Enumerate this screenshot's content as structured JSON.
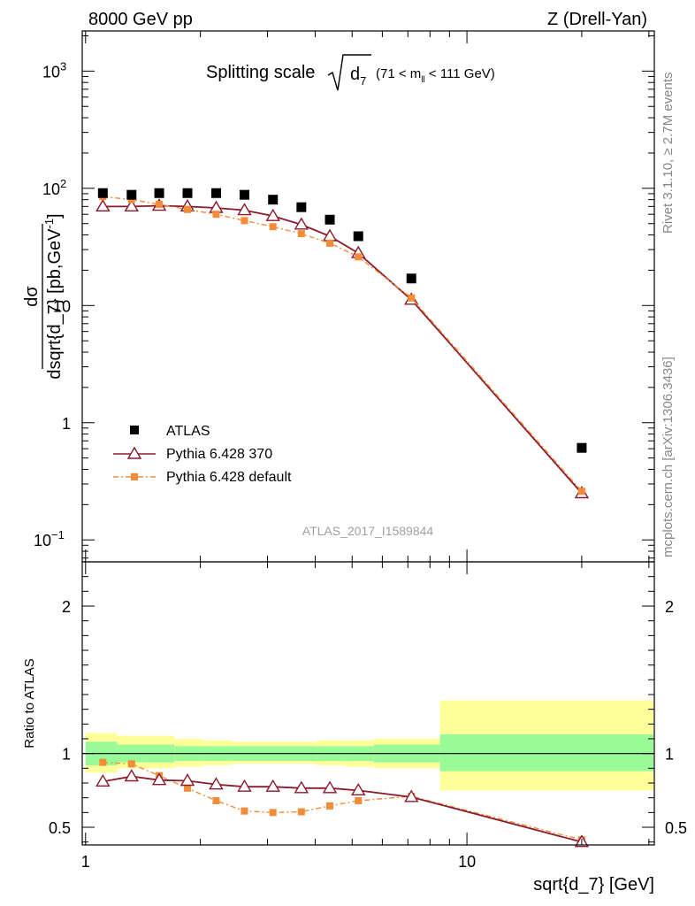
{
  "header": {
    "left": "8000 GeV pp",
    "right": "Z (Drell-Yan)"
  },
  "side_labels": {
    "rivet": "Rivet 3.1.10, ≥ 2.7M events",
    "mcplots": "mcplots.cern.ch [arXiv:1306.3436]"
  },
  "colors": {
    "atlas": "#000000",
    "pythia370": "#8b1a2b",
    "pythia_default": "#f28c38",
    "band_inner": "#98fb98",
    "band_outer": "#ffff99"
  },
  "chart_data": [
    {
      "type": "line",
      "panel": "main",
      "title_prefix": "Splitting scale",
      "title_symbol": "d",
      "title_symbol_sub": "7",
      "title_suffix_a": "(71 < m",
      "title_suffix_sub": "ll",
      "title_suffix_b": " < 111 GeV)",
      "ylabel": "dσ/dsqrt{d_7} [pb,GeV⁻¹]",
      "ylabel_num": "dσ",
      "ylabel_den": "dsqrt{d_7} [pb,GeV",
      "ylabel_den_sup": "-1",
      "ylabel_den_end": "]",
      "xscale": "log",
      "yscale": "log",
      "xlim": [
        0.98,
        31
      ],
      "ylim": [
        0.065,
        2200
      ],
      "y_tick_labels": [
        {
          "value": 1000,
          "base": "10",
          "exp": "3"
        },
        {
          "value": 100,
          "base": "10",
          "exp": "2"
        },
        {
          "value": 10,
          "base": "10",
          "exp": ""
        },
        {
          "value": 1,
          "base": "1",
          "exp": ""
        },
        {
          "value": 0.1,
          "base": "10",
          "exp": "−1"
        }
      ],
      "watermark": "ATLAS_2017_I1589844",
      "legend_position": "bottom-left",
      "series": [
        {
          "name": "ATLAS",
          "style": "square",
          "x": [
            1.11,
            1.32,
            1.56,
            1.85,
            2.2,
            2.61,
            3.1,
            3.68,
            4.37,
            5.19,
            7.15,
            20.0
          ],
          "y": [
            91,
            88,
            91,
            91,
            91,
            88,
            80,
            69,
            54,
            39,
            17,
            0.61
          ]
        },
        {
          "name": "Pythia 6.428 370",
          "style": "triangle-line",
          "x": [
            1.11,
            1.32,
            1.56,
            1.85,
            2.2,
            2.61,
            3.1,
            3.68,
            4.37,
            5.19,
            7.15,
            20.0
          ],
          "y": [
            70,
            70,
            71,
            70,
            68,
            65,
            58,
            49,
            39,
            28,
            11.2,
            0.25
          ]
        },
        {
          "name": "Pythia 6.428 default",
          "style": "dashdot-square",
          "x": [
            1.11,
            1.32,
            1.56,
            1.85,
            2.2,
            2.61,
            3.1,
            3.68,
            4.37,
            5.19,
            7.15,
            20.0
          ],
          "y": [
            85,
            80,
            73,
            66,
            60,
            53,
            47,
            41,
            34,
            26,
            11.6,
            0.26
          ]
        }
      ]
    },
    {
      "type": "line",
      "panel": "ratio",
      "ylabel": "Ratio to ATLAS",
      "xlabel": "sqrt{d_7} [GeV]",
      "xscale": "log",
      "xlim": [
        0.98,
        31
      ],
      "ylim": [
        0.38,
        2.3
      ],
      "y_tick_labels": [
        {
          "value": 2,
          "label": "2"
        },
        {
          "value": 1,
          "label": "1"
        },
        {
          "value": 0.5,
          "label": "0.5"
        }
      ],
      "x_tick_labels": [
        {
          "value": 1,
          "label": "1"
        },
        {
          "value": 10,
          "label": "10"
        }
      ],
      "bands": {
        "edges": [
          1.0,
          1.21,
          1.44,
          1.71,
          2.03,
          2.41,
          2.86,
          3.4,
          4.04,
          4.8,
          5.7,
          8.5,
          31.0
        ],
        "inner_lo": [
          0.92,
          0.94,
          0.94,
          0.95,
          0.95,
          0.95,
          0.95,
          0.95,
          0.95,
          0.95,
          0.94,
          0.88
        ],
        "inner_hi": [
          1.08,
          1.06,
          1.06,
          1.05,
          1.05,
          1.05,
          1.05,
          1.05,
          1.05,
          1.05,
          1.06,
          1.13
        ],
        "outer_lo": [
          0.87,
          0.9,
          0.9,
          0.91,
          0.92,
          0.93,
          0.93,
          0.93,
          0.92,
          0.91,
          0.9,
          0.75
        ],
        "outer_hi": [
          1.14,
          1.12,
          1.12,
          1.1,
          1.09,
          1.08,
          1.08,
          1.08,
          1.09,
          1.09,
          1.1,
          1.36
        ]
      },
      "series": [
        {
          "name": "Pythia 6.428 370",
          "style": "triangle-line",
          "x": [
            1.11,
            1.32,
            1.56,
            1.85,
            2.2,
            2.61,
            3.1,
            3.68,
            4.37,
            5.19,
            7.15,
            20.0
          ],
          "y": [
            0.81,
            0.845,
            0.82,
            0.815,
            0.79,
            0.775,
            0.775,
            0.765,
            0.765,
            0.75,
            0.705,
            0.4
          ]
        },
        {
          "name": "Pythia 6.428 default",
          "style": "dashdot-square",
          "x": [
            1.11,
            1.32,
            1.56,
            1.85,
            2.2,
            2.61,
            3.1,
            3.68,
            4.37,
            5.19,
            7.15,
            20.0
          ],
          "y": [
            0.94,
            0.93,
            0.85,
            0.765,
            0.68,
            0.61,
            0.6,
            0.605,
            0.645,
            0.68,
            0.71,
            0.415
          ]
        }
      ]
    }
  ]
}
